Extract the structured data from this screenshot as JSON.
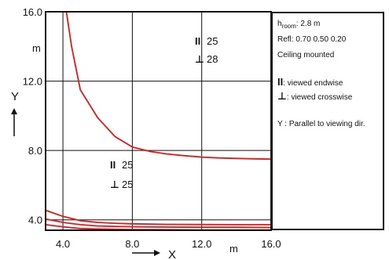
{
  "chart_data": {
    "type": "line",
    "xlabel": "X",
    "ylabel": "Y",
    "xunit": "m",
    "yunit": "m",
    "xlim": [
      3.0,
      16.0
    ],
    "ylim": [
      3.4,
      16.0
    ],
    "x_ticks": [
      "4.0",
      "8.0",
      "12.0",
      "16.0"
    ],
    "y_ticks": [
      "4.0",
      "8.0",
      "12.0",
      "16.0"
    ],
    "grid": true,
    "series_color": "#e01a1a",
    "series": [
      {
        "x": [
          4.2,
          4.5,
          5.0,
          6.0,
          7.0,
          8.0,
          9.0,
          10.0,
          11.0,
          12.0,
          13.0,
          14.0,
          15.0,
          16.0
        ],
        "y": [
          16.0,
          14.0,
          11.5,
          9.9,
          8.8,
          8.2,
          7.95,
          7.8,
          7.7,
          7.62,
          7.57,
          7.54,
          7.52,
          7.5
        ]
      },
      {
        "x": [
          3.0,
          4.0,
          5.0,
          6.0,
          7.0,
          8.0,
          10.0,
          12.0,
          14.0,
          16.0
        ],
        "y": [
          4.55,
          4.2,
          3.95,
          3.85,
          3.8,
          3.77,
          3.74,
          3.73,
          3.72,
          3.72
        ]
      },
      {
        "x": [
          3.0,
          4.0,
          5.0,
          6.0,
          7.0,
          8.0,
          10.0,
          12.0,
          14.0,
          16.0
        ],
        "y": [
          4.05,
          3.85,
          3.72,
          3.65,
          3.62,
          3.6,
          3.58,
          3.57,
          3.57,
          3.56
        ]
      },
      {
        "x": [
          3.0,
          4.0,
          5.0,
          6.0,
          8.0,
          10.0,
          12.0,
          14.0,
          16.0
        ],
        "y": [
          3.72,
          3.6,
          3.5,
          3.47,
          3.44,
          3.43,
          3.42,
          3.42,
          3.42
        ]
      }
    ],
    "annotations": [
      {
        "endwise": "25",
        "crosswise": "28"
      },
      {
        "endwise": "25",
        "crosswise": "25"
      }
    ]
  },
  "symbols": {
    "endwise": "II",
    "crosswise": "⊥"
  },
  "legend": {
    "room_label": "h",
    "room_sub": "room",
    "room_value": ": 2.8 m",
    "refl": "Refl: 0.70 0.50 0.20",
    "mounting": "Ceiling mounted",
    "endwise_text": ": viewed endwise",
    "crosswise_text": ": viewed crosswise",
    "y_note": "Y  : Parallel to viewing dir."
  }
}
